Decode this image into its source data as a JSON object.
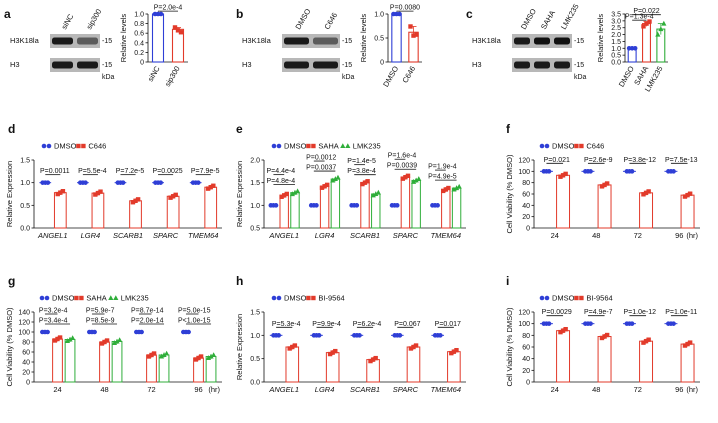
{
  "colors": {
    "blue": "#2f3fd6",
    "red": "#e23a2a",
    "green": "#2fae3a",
    "black": "#111111"
  },
  "chart_data": [
    {
      "id": "a",
      "type": "bar",
      "panel_label": "a",
      "ylabel": "Relative levels",
      "ylim": [
        0,
        1.0
      ],
      "yticks": [
        "0",
        "0.2",
        "0.4",
        "0.6",
        "0.8",
        "1.0"
      ],
      "categories": [
        "siNC",
        "sip300"
      ],
      "values": [
        1.0,
        0.68
      ],
      "points": [
        [
          1.0,
          1.0,
          1.0
        ],
        [
          0.72,
          0.66,
          0.62
        ]
      ],
      "colors": [
        "blue",
        "red"
      ],
      "stats": [
        {
          "text": "P=2.0e-4",
          "from": 0,
          "to": 1,
          "level": 1.06
        }
      ],
      "blot": {
        "lanes": [
          "siNC",
          "sip300"
        ],
        "rows": [
          "H3K18la",
          "H3"
        ],
        "markers": [
          "-15",
          "-15"
        ],
        "kda": "kDa"
      }
    },
    {
      "id": "b",
      "type": "bar",
      "panel_label": "b",
      "ylabel": "Relative levels",
      "ylim": [
        0,
        1.0
      ],
      "yticks": [
        "0",
        "0.5",
        "1.0"
      ],
      "categories": [
        "DMSO",
        "C646"
      ],
      "values": [
        1.0,
        0.62
      ],
      "points": [
        [
          1.0,
          1.0,
          1.0
        ],
        [
          0.74,
          0.55,
          0.57
        ]
      ],
      "colors": [
        "blue",
        "red"
      ],
      "stats": [
        {
          "text": "P=0.0080",
          "from": 0,
          "to": 1,
          "level": 1.06
        }
      ],
      "blot": {
        "lanes": [
          "DMSO",
          "C646"
        ],
        "rows": [
          "H3K18la",
          "H3"
        ],
        "markers": [
          "-15",
          "-15"
        ],
        "kda": "kDa"
      }
    },
    {
      "id": "c",
      "type": "bar",
      "panel_label": "c",
      "ylabel": "Relative levels",
      "ylim": [
        0,
        3.5
      ],
      "yticks": [
        "0.0",
        "0.5",
        "1.0",
        "1.5",
        "2.0",
        "2.5",
        "3.0",
        "3.5"
      ],
      "categories": [
        "DMSO",
        "SAHA",
        "LMK235"
      ],
      "values": [
        1.0,
        2.8,
        2.4
      ],
      "points": [
        [
          1.0,
          1.0,
          1.0
        ],
        [
          2.6,
          2.8,
          2.95
        ],
        [
          2.0,
          2.4,
          2.8
        ]
      ],
      "colors": [
        "blue",
        "red",
        "green"
      ],
      "stats": [
        {
          "text": "P=0.022",
          "from": 0,
          "to": 2,
          "level": 3.45
        },
        {
          "text": "P=1.3e-4",
          "from": 0,
          "to": 1,
          "level": 3.05
        }
      ],
      "blot": {
        "lanes": [
          "DMSO",
          "SAHA",
          "LMK235"
        ],
        "rows": [
          "H3K18la",
          "H3"
        ],
        "markers": [
          "-15",
          "-15"
        ],
        "kda": "kDa"
      }
    },
    {
      "id": "d",
      "type": "bar",
      "panel_label": "d",
      "ylabel": "Relative Expression",
      "ylim": [
        0,
        1.5
      ],
      "yticks": [
        "0.0",
        "0.5",
        "1.0",
        "1.5"
      ],
      "legend": [
        "DMSO",
        "C646"
      ],
      "series_colors": [
        "blue",
        "red"
      ],
      "categories": [
        "ANGEL1",
        "LGR4",
        "SCARB1",
        "SPARC",
        "TMEM64"
      ],
      "groups": [
        [
          1.0,
          0.78
        ],
        [
          1.0,
          0.77
        ],
        [
          1.0,
          0.6
        ],
        [
          1.0,
          0.7
        ],
        [
          1.0,
          0.9
        ]
      ],
      "stats": [
        {
          "texts": [
            "P=0.0011"
          ]
        },
        {
          "texts": [
            "P=5.5e-4"
          ]
        },
        {
          "texts": [
            "P=7.2e-5"
          ]
        },
        {
          "texts": [
            "P=0.0025"
          ]
        },
        {
          "texts": [
            "P=7.9e-5"
          ]
        }
      ]
    },
    {
      "id": "e",
      "type": "bar",
      "panel_label": "e",
      "ylabel": "Relative Expression",
      "ylim": [
        0.5,
        2.0
      ],
      "yticks": [
        "0.5",
        "1.0",
        "1.5",
        "2.0"
      ],
      "legend": [
        "DMSO",
        "SAHA",
        "LMK235"
      ],
      "series_colors": [
        "blue",
        "red",
        "green"
      ],
      "categories": [
        "ANGEL1",
        "LGR4",
        "SCARB1",
        "SPARC",
        "TMEM64"
      ],
      "groups": [
        [
          1.0,
          1.22,
          1.28
        ],
        [
          1.0,
          1.42,
          1.58
        ],
        [
          1.0,
          1.5,
          1.25
        ],
        [
          1.0,
          1.62,
          1.55
        ],
        [
          1.0,
          1.35,
          1.38
        ]
      ],
      "stats": [
        {
          "texts": [
            "P=4.4e-4",
            "P=4.8e-4"
          ]
        },
        {
          "texts": [
            "P=0.0012",
            "P=0.0037"
          ]
        },
        {
          "texts": [
            "P=1.4e-5",
            "P=3.8e-4"
          ]
        },
        {
          "texts": [
            "P=1.6e-4",
            "P=0.0039"
          ]
        },
        {
          "texts": [
            "P=1.9e-4",
            "P=4.9e-5"
          ]
        }
      ]
    },
    {
      "id": "f",
      "type": "bar",
      "panel_label": "f",
      "ylabel": "Cell Viability (% DMSO)",
      "ylim": [
        0,
        120
      ],
      "yticks": [
        "0",
        "20",
        "40",
        "60",
        "80",
        "100",
        "120"
      ],
      "legend": [
        "DMSO",
        "C646"
      ],
      "series_colors": [
        "blue",
        "red"
      ],
      "categories": [
        "24",
        "48",
        "72",
        "96"
      ],
      "unit": "(hr)",
      "groups": [
        [
          100,
          93
        ],
        [
          100,
          76
        ],
        [
          100,
          62
        ],
        [
          100,
          58
        ]
      ],
      "stats": [
        {
          "texts": [
            "P=0.021"
          ]
        },
        {
          "texts": [
            "P=2.6e-9"
          ]
        },
        {
          "texts": [
            "P=3.8e-12"
          ]
        },
        {
          "texts": [
            "P=7.5e-13"
          ]
        }
      ]
    },
    {
      "id": "g",
      "type": "bar",
      "panel_label": "g",
      "ylabel": "Cell Viability (% DMSO)",
      "ylim": [
        0,
        140
      ],
      "yticks": [
        "0",
        "20",
        "40",
        "60",
        "80",
        "100",
        "120",
        "140"
      ],
      "legend": [
        "DMSO",
        "SAHA",
        "LMK235"
      ],
      "series_colors": [
        "blue",
        "red",
        "green"
      ],
      "categories": [
        "24",
        "48",
        "72",
        "96"
      ],
      "unit": "(hr)",
      "groups": [
        [
          100,
          86,
          85
        ],
        [
          100,
          80,
          81
        ],
        [
          100,
          54,
          54
        ],
        [
          100,
          48,
          51
        ]
      ],
      "stats": [
        {
          "texts": [
            "P=3.2e-4",
            "P=3.4e-4"
          ]
        },
        {
          "texts": [
            "P=5.9e-7",
            "P=8.5e-9"
          ]
        },
        {
          "texts": [
            "P=8.7e-14",
            "P=2.0e-14"
          ]
        },
        {
          "texts": [
            "P=5.0e-15",
            "P<1.0e-15"
          ]
        }
      ]
    },
    {
      "id": "h",
      "type": "bar",
      "panel_label": "h",
      "ylabel": "Relative Expression",
      "ylim": [
        0,
        1.5
      ],
      "yticks": [
        "0.0",
        "0.5",
        "1.0",
        "1.5"
      ],
      "legend": [
        "DMSO",
        "BI-9564"
      ],
      "series_colors": [
        "blue",
        "red"
      ],
      "categories": [
        "ANGEL1",
        "LGR4",
        "SCARB1",
        "SPARC",
        "TMEM64"
      ],
      "groups": [
        [
          1.0,
          0.75
        ],
        [
          1.0,
          0.63
        ],
        [
          1.0,
          0.48
        ],
        [
          1.0,
          0.75
        ],
        [
          1.0,
          0.65
        ]
      ],
      "stats": [
        {
          "texts": [
            "P=5.3e-4"
          ]
        },
        {
          "texts": [
            "P=9.9e-4"
          ]
        },
        {
          "texts": [
            "P=6.2e-4"
          ]
        },
        {
          "texts": [
            "P=0.067"
          ]
        },
        {
          "texts": [
            "P=0.017"
          ]
        }
      ]
    },
    {
      "id": "i",
      "type": "bar",
      "panel_label": "i",
      "ylabel": "Cell Viability (% DMSO)",
      "ylim": [
        0,
        120
      ],
      "yticks": [
        "0",
        "20",
        "40",
        "60",
        "80",
        "100",
        "120"
      ],
      "legend": [
        "DMSO",
        "BI-9564"
      ],
      "series_colors": [
        "blue",
        "red"
      ],
      "categories": [
        "24",
        "48",
        "72",
        "96"
      ],
      "unit": "(hr)",
      "groups": [
        [
          100,
          88
        ],
        [
          100,
          78
        ],
        [
          100,
          70
        ],
        [
          100,
          65
        ]
      ],
      "stats": [
        {
          "texts": [
            "P=0.0029"
          ]
        },
        {
          "texts": [
            "P=4.9e-7"
          ]
        },
        {
          "texts": [
            "P=1.0e-12"
          ]
        },
        {
          "texts": [
            "P=1.0e-11"
          ]
        }
      ]
    }
  ]
}
